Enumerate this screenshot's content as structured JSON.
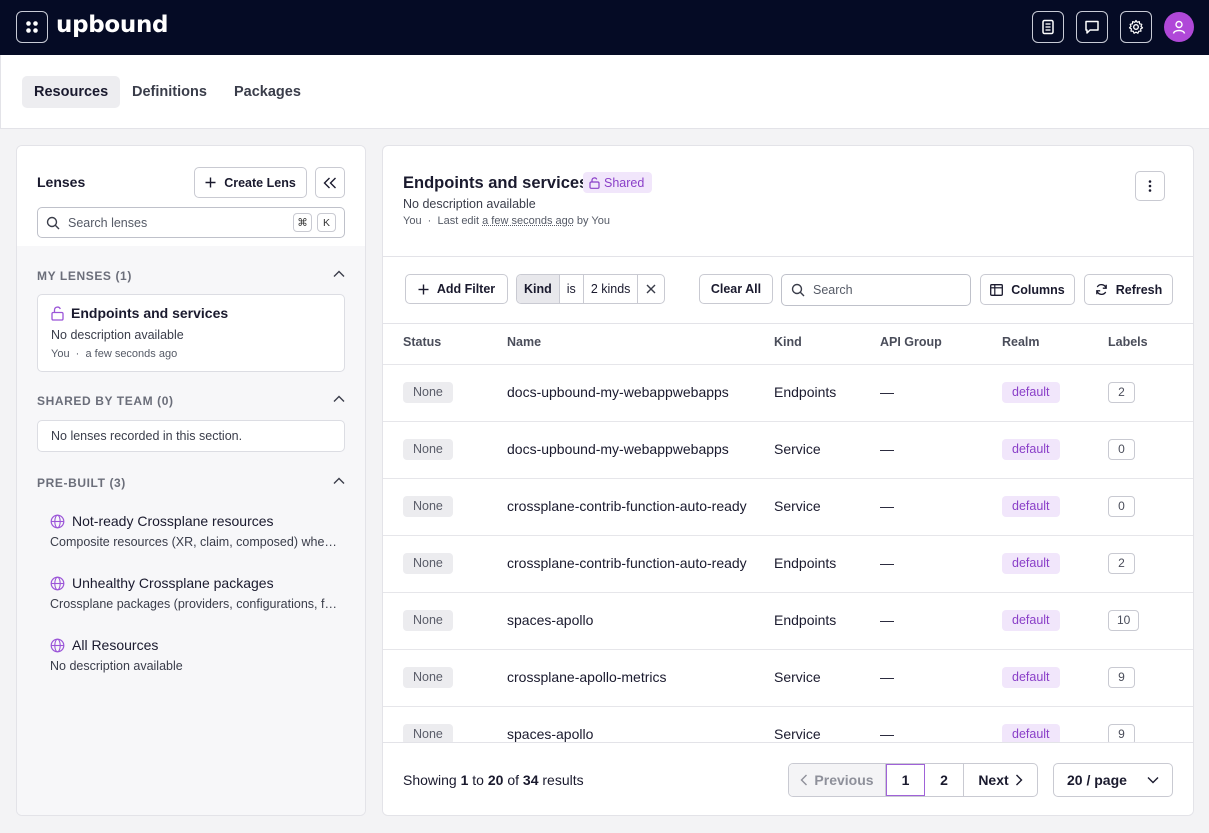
{
  "app": {
    "logo": "upbound"
  },
  "header_icons": [
    "docs-icon",
    "chat-icon",
    "settings-icon",
    "user-avatar-icon"
  ],
  "tabs": [
    {
      "label": "Resources",
      "active": true
    },
    {
      "label": "Definitions",
      "active": false
    },
    {
      "label": "Packages",
      "active": false
    }
  ],
  "lenses": {
    "title": "Lenses",
    "create_label": "Create Lens",
    "search_placeholder": "Search lenses",
    "shortcut": [
      "⌘",
      "K"
    ],
    "my_lenses": {
      "title": "MY LENSES (1)",
      "items": [
        {
          "name": "Endpoints and services",
          "description": "No description available",
          "owner": "You",
          "time": "a few seconds ago"
        }
      ]
    },
    "shared": {
      "title": "SHARED BY TEAM (0)",
      "empty": "No lenses recorded in this section."
    },
    "prebuilt": {
      "title": "PRE-BUILT (3)",
      "items": [
        {
          "name": "Not-ready Crossplane resources",
          "description": "Composite resources (XR, claim, composed) where status is not ready"
        },
        {
          "name": "Unhealthy Crossplane packages",
          "description": "Crossplane packages (providers, configurations, functions) that are unhealthy"
        },
        {
          "name": "All Resources",
          "description": "No description available"
        }
      ]
    }
  },
  "view": {
    "title": "Endpoints and services",
    "badge": "Shared",
    "description": "No description available",
    "meta": {
      "owner": "You",
      "last_edit_label": "Last edit",
      "time": "a few seconds ago",
      "by_label": "by",
      "editor": "You"
    }
  },
  "filters": {
    "add_filter": "Add Filter",
    "chip": {
      "field": "Kind",
      "op": "is",
      "value": "2 kinds"
    },
    "clear_all": "Clear All",
    "search_placeholder": "Search",
    "columns": "Columns",
    "refresh": "Refresh"
  },
  "table": {
    "columns": [
      "Status",
      "Name",
      "Kind",
      "API Group",
      "Realm",
      "Labels"
    ],
    "rows": [
      {
        "status": "None",
        "name": "docs-upbound-my-webappwebapps",
        "kind": "Endpoints",
        "api_group": "—",
        "realm": "default",
        "labels": "2"
      },
      {
        "status": "None",
        "name": "docs-upbound-my-webappwebapps",
        "kind": "Service",
        "api_group": "—",
        "realm": "default",
        "labels": "0"
      },
      {
        "status": "None",
        "name": "crossplane-contrib-function-auto-ready",
        "kind": "Service",
        "api_group": "—",
        "realm": "default",
        "labels": "0"
      },
      {
        "status": "None",
        "name": "crossplane-contrib-function-auto-ready",
        "kind": "Endpoints",
        "api_group": "—",
        "realm": "default",
        "labels": "2"
      },
      {
        "status": "None",
        "name": "spaces-apollo",
        "kind": "Endpoints",
        "api_group": "—",
        "realm": "default",
        "labels": "10"
      },
      {
        "status": "None",
        "name": "crossplane-apollo-metrics",
        "kind": "Service",
        "api_group": "—",
        "realm": "default",
        "labels": "9"
      },
      {
        "status": "None",
        "name": "spaces-apollo",
        "kind": "Service",
        "api_group": "—",
        "realm": "default",
        "labels": "9"
      }
    ]
  },
  "pagination": {
    "showing_label": "Showing",
    "from": "1",
    "to_label": "to",
    "to": "20",
    "of_label": "of",
    "total": "34",
    "results_label": "results",
    "prev": "Previous",
    "pages": [
      "1",
      "2"
    ],
    "next": "Next",
    "per_page": "20 / page"
  },
  "colors": {
    "topbar": "#050b25",
    "accent": "#8a3fc8",
    "avatar": "#b048d8"
  }
}
